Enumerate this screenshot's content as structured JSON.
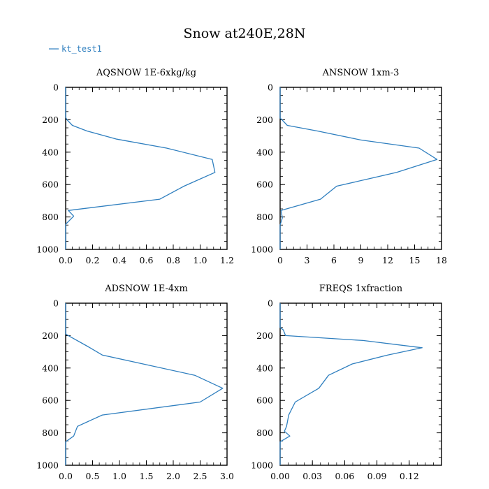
{
  "title": "Snow at240E,28N",
  "legend": {
    "label": "kt_test1",
    "color": "#2f7fbf"
  },
  "line_color": "#2f7fbf",
  "chart_data": [
    {
      "type": "line",
      "title": "AQSNOW  1E-6xkg/kg",
      "xlim": [
        0,
        1.2
      ],
      "ylim": [
        1000,
        0
      ],
      "x_ticks": [
        "0.0",
        "0.2",
        "0.4",
        "0.6",
        "0.8",
        "1.0",
        "1.2"
      ],
      "x_tick_values": [
        0,
        0.2,
        0.4,
        0.6,
        0.8,
        1.0,
        1.2
      ],
      "y_ticks": [
        "0",
        "200",
        "400",
        "600",
        "800",
        "1000"
      ],
      "y_tick_values": [
        0,
        200,
        400,
        600,
        800,
        1000
      ],
      "series": [
        {
          "x": [
            0,
            0,
            0.01,
            0.05,
            0.16,
            0.38,
            0.75,
            1.09,
            1.11,
            0.88,
            0.7,
            0.02,
            0.06,
            0.0,
            0.0
          ],
          "y": [
            0,
            185,
            200,
            235,
            270,
            320,
            375,
            445,
            525,
            610,
            690,
            760,
            795,
            845,
            1000
          ]
        }
      ]
    },
    {
      "type": "line",
      "title": "ANSNOW  1xm-3",
      "xlim": [
        0,
        18
      ],
      "ylim": [
        1000,
        0
      ],
      "x_ticks": [
        "0",
        "3",
        "6",
        "9",
        "12",
        "15",
        "18"
      ],
      "x_tick_values": [
        0,
        3,
        6,
        9,
        12,
        15,
        18
      ],
      "y_ticks": [
        "0",
        "200",
        "400",
        "600",
        "800",
        "1000"
      ],
      "y_tick_values": [
        0,
        200,
        400,
        600,
        800,
        1000
      ],
      "series": [
        {
          "x": [
            0,
            0,
            0.2,
            0.8,
            4.2,
            9.0,
            15.5,
            17.5,
            13.0,
            6.3,
            4.5,
            0.1,
            0.25,
            0.0,
            0.0
          ],
          "y": [
            0,
            190,
            200,
            235,
            270,
            325,
            375,
            445,
            525,
            610,
            690,
            760,
            805,
            850,
            1000
          ]
        }
      ]
    },
    {
      "type": "line",
      "title": "ADSNOW  1E-4xm",
      "xlim": [
        0,
        3.0
      ],
      "ylim": [
        1000,
        0
      ],
      "x_ticks": [
        "0.0",
        "0.5",
        "1.0",
        "1.5",
        "2.0",
        "2.5",
        "3.0"
      ],
      "x_tick_values": [
        0,
        0.5,
        1.0,
        1.5,
        2.0,
        2.5,
        3.0
      ],
      "y_ticks": [
        "0",
        "200",
        "400",
        "600",
        "800",
        "1000"
      ],
      "y_tick_values": [
        0,
        200,
        400,
        600,
        800,
        1000
      ],
      "series": [
        {
          "x": [
            0,
            0,
            0.05,
            0.4,
            0.68,
            2.4,
            2.92,
            2.5,
            0.68,
            0.22,
            0.15,
            0.0,
            0.0
          ],
          "y": [
            0,
            190,
            200,
            265,
            320,
            445,
            525,
            610,
            690,
            760,
            820,
            855,
            1000
          ]
        }
      ]
    },
    {
      "type": "line",
      "title": "FREQS  1xfraction",
      "xlim": [
        0,
        0.15
      ],
      "ylim": [
        1000,
        0
      ],
      "x_ticks": [
        "0.00",
        "0.03",
        "0.06",
        "0.09",
        "0.12"
      ],
      "x_tick_values": [
        0,
        0.03,
        0.06,
        0.09,
        0.12
      ],
      "y_ticks": [
        "0",
        "200",
        "400",
        "600",
        "800",
        "1000"
      ],
      "y_tick_values": [
        0,
        200,
        400,
        600,
        800,
        1000
      ],
      "series": [
        {
          "x": [
            0,
            0,
            0.003,
            0.005,
            0.077,
            0.132,
            0.1,
            0.067,
            0.045,
            0.036,
            0.014,
            0.008,
            0.006,
            0.004,
            0.009,
            0.0,
            0.0
          ],
          "y": [
            0,
            150,
            165,
            200,
            230,
            275,
            320,
            375,
            445,
            525,
            610,
            690,
            760,
            790,
            820,
            855,
            1000
          ]
        }
      ]
    }
  ]
}
